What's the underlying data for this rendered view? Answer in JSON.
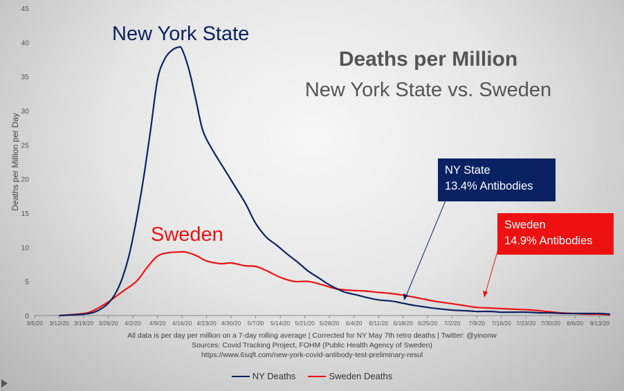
{
  "chart_data": {
    "type": "line",
    "title": "Deaths per Million",
    "subtitle": "New York State  vs. Sweden",
    "ylabel": "Deaths per Million per Day",
    "ylim": [
      0,
      45
    ],
    "yticks": [
      0,
      5,
      10,
      15,
      20,
      25,
      30,
      35,
      40,
      45
    ],
    "xlim": [
      "3/5/20",
      "8/16/20"
    ],
    "xticks": [
      "3/5/20",
      "3/12/20",
      "3/19/20",
      "3/26/20",
      "4/2/20",
      "4/9/20",
      "4/16/20",
      "4/23/20",
      "4/30/20",
      "5/7/20",
      "5/14/20",
      "5/21/20",
      "5/28/20",
      "6/4/20",
      "6/11/20",
      "6/18/20",
      "6/25/20",
      "7/2/20",
      "7/9/20",
      "7/16/20",
      "7/23/20",
      "7/30/20",
      "8/6/20",
      "8/13/20"
    ],
    "series": [
      {
        "name": "NY Deaths",
        "color": "#0b2262",
        "label": "New York State",
        "x": [
          "3/12/20",
          "3/19/20",
          "3/22/20",
          "3/24/20",
          "3/26/20",
          "3/28/20",
          "3/30/20",
          "4/1/20",
          "4/3/20",
          "4/5/20",
          "4/7/20",
          "4/9/20",
          "4/11/20",
          "4/13/20",
          "4/15/20",
          "4/16/20",
          "4/18/20",
          "4/20/20",
          "4/22/20",
          "4/25/20",
          "4/28/20",
          "5/1/20",
          "5/4/20",
          "5/7/20",
          "5/10/20",
          "5/13/20",
          "5/16/20",
          "5/19/20",
          "5/22/20",
          "5/25/20",
          "5/28/20",
          "6/1/20",
          "6/5/20",
          "6/8/20",
          "6/11/20",
          "6/15/20",
          "6/18/20",
          "6/21/20",
          "6/25/20",
          "6/28/20",
          "7/2/20",
          "7/6/20",
          "7/9/20",
          "7/13/20",
          "7/16/20",
          "7/20/20",
          "7/23/20",
          "7/27/20",
          "7/30/20",
          "8/3/20",
          "8/6/20",
          "8/10/20",
          "8/13/20",
          "8/16/20"
        ],
        "y": [
          0,
          0.2,
          0.5,
          1,
          1.8,
          3.2,
          5.5,
          9,
          14,
          20,
          27,
          34.5,
          37.5,
          38.8,
          39.3,
          39,
          36,
          31.5,
          27,
          24,
          21.5,
          19,
          16.5,
          13.5,
          11.5,
          10.3,
          9,
          7.8,
          6.5,
          5.5,
          4.5,
          3.5,
          3,
          2.6,
          2.3,
          2.1,
          1.8,
          1.5,
          1.2,
          1,
          0.8,
          0.7,
          0.6,
          0.6,
          0.5,
          0.5,
          0.5,
          0.4,
          0.4,
          0.3,
          0.3,
          0.3,
          0.3,
          0.2
        ]
      },
      {
        "name": "Sweden Deaths",
        "color": "#ee1111",
        "label": "Sweden",
        "x": [
          "3/12/20",
          "3/19/20",
          "3/22/20",
          "3/26/20",
          "3/30/20",
          "4/3/20",
          "4/6/20",
          "4/9/20",
          "4/12/20",
          "4/15/20",
          "4/17/20",
          "4/20/20",
          "4/23/20",
          "4/27/20",
          "4/30/20",
          "5/4/20",
          "5/7/20",
          "5/10/20",
          "5/14/20",
          "5/18/20",
          "5/22/20",
          "5/26/20",
          "5/30/20",
          "6/3/20",
          "6/7/20",
          "6/11/20",
          "6/15/20",
          "6/19/20",
          "6/23/20",
          "6/27/20",
          "7/1/20",
          "7/5/20",
          "7/9/20",
          "7/13/20",
          "7/17/20",
          "7/21/20",
          "7/25/20",
          "7/29/20",
          "8/2/20",
          "8/6/20",
          "8/10/20",
          "8/13/20",
          "8/16/20"
        ],
        "y": [
          0,
          0.3,
          0.8,
          2,
          3.5,
          5,
          7,
          8.7,
          9.2,
          9.3,
          9.3,
          8.8,
          8,
          7.6,
          7.7,
          7.3,
          7.2,
          6.6,
          5.6,
          5,
          5,
          4.5,
          3.9,
          3.7,
          3.6,
          3.4,
          3.2,
          2.9,
          2.5,
          2.1,
          1.8,
          1.5,
          1.2,
          1.1,
          1,
          0.9,
          0.8,
          0.6,
          0.4,
          0.3,
          0.2,
          0.2,
          0.1
        ]
      }
    ],
    "legend": "bottom",
    "grid": false
  },
  "footer": {
    "line1": "All data is per day per million on a 7-day rolling average | Corrected for NY May 7th retro deaths | Twitter: @yinonw",
    "line2": "Sources: Covid Tracking Project, FOHM (Public Health Agency of Sweden)",
    "line3": "https://www.6sqft.com/new-york-covid-antibody-test-preliminary-resul"
  },
  "callouts": {
    "ny": {
      "line1": "NY State",
      "line2": "13.4% Antibodies",
      "bg": "#0b2262"
    },
    "sweden": {
      "line1": "Sweden",
      "line2": "14.9% Antibodies",
      "bg": "#ee1111"
    }
  }
}
